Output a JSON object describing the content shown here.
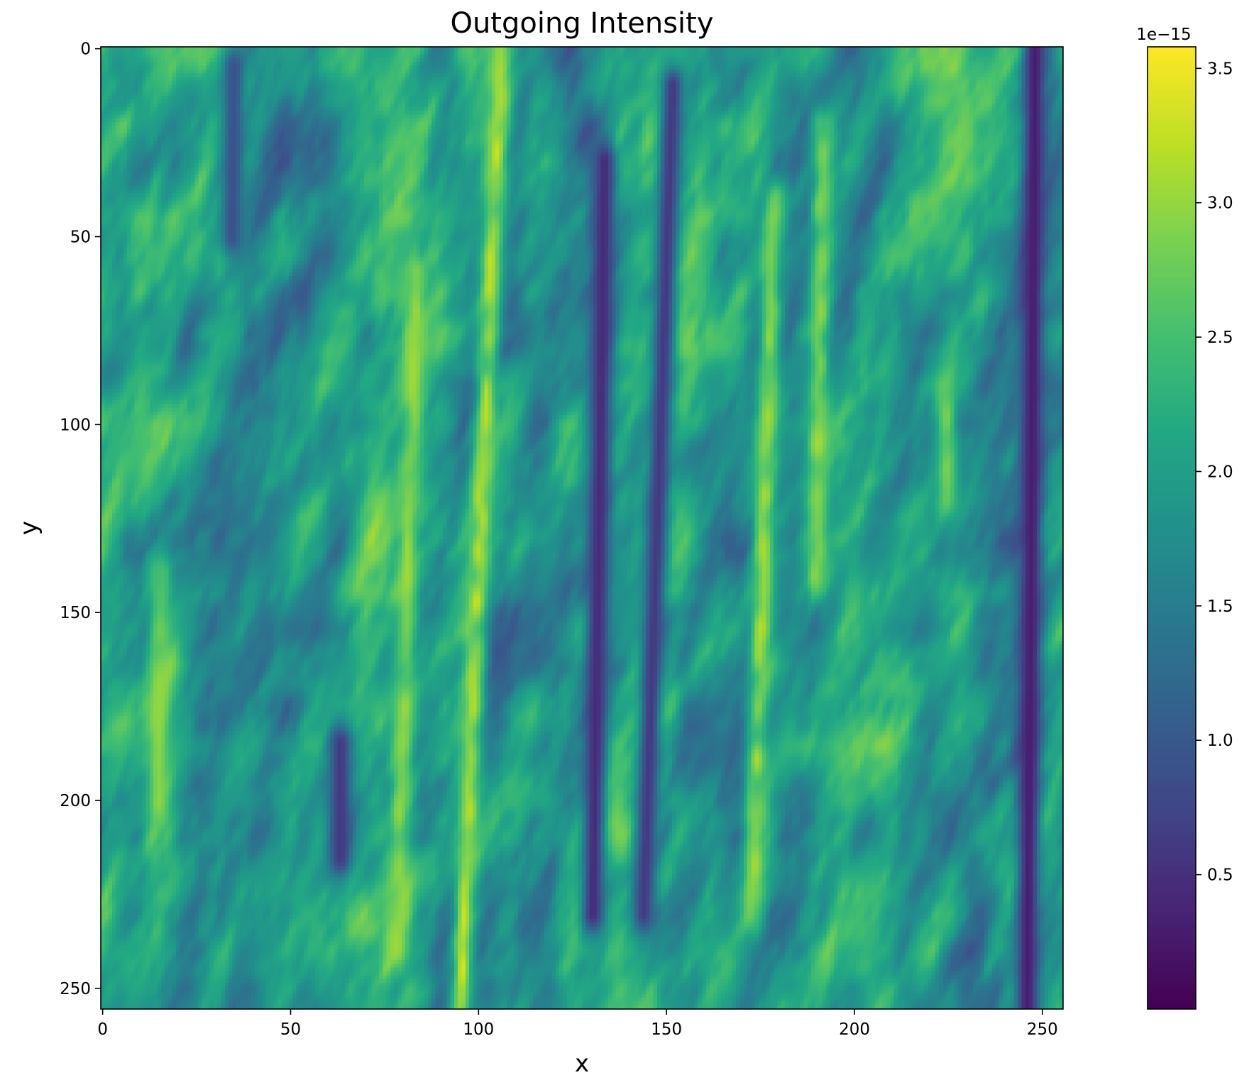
{
  "chart_data": {
    "type": "heatmap",
    "title": "Outgoing Intensity",
    "xlabel": "x",
    "ylabel": "y",
    "xlim": [
      0,
      255
    ],
    "ylim": [
      255,
      0
    ],
    "grid_size": [
      256,
      256
    ],
    "x_ticks": [
      0,
      50,
      100,
      150,
      200,
      250
    ],
    "y_ticks": [
      0,
      50,
      100,
      150,
      200,
      250
    ],
    "colormap": "viridis",
    "colorbar": {
      "range": [
        0.0,
        3.58
      ],
      "ticks": [
        0.5,
        1.0,
        1.5,
        2.0,
        2.5,
        3.0,
        3.5
      ],
      "tick_labels": [
        "0.5",
        "1.0",
        "1.5",
        "2.0",
        "2.5",
        "3.0",
        "3.5"
      ],
      "offset_label": "1e−15"
    },
    "grid": false,
    "dark_streaks": [
      {
        "x_top": 35,
        "x_bottom": 32,
        "value": 0.9,
        "rows": [
          5,
          50
        ]
      },
      {
        "x_top": 134,
        "x_bottom": 130,
        "value": 0.45,
        "rows": [
          30,
          230
        ]
      },
      {
        "x_top": 152,
        "x_bottom": 143,
        "value": 0.6,
        "rows": [
          10,
          230
        ]
      },
      {
        "x_top": 248,
        "x_bottom": 246,
        "value": 0.3,
        "rows": [
          0,
          255
        ]
      },
      {
        "x_top": 64,
        "x_bottom": 63,
        "value": 0.6,
        "rows": [
          185,
          215
        ]
      }
    ],
    "bright_streaks": [
      {
        "x_top": 106,
        "x_bottom": 95,
        "value": 3.4,
        "rows": [
          0,
          255
        ]
      },
      {
        "x_top": 85,
        "x_bottom": 78,
        "value": 3.1,
        "rows": [
          60,
          240
        ]
      },
      {
        "x_top": 180,
        "x_bottom": 172,
        "value": 3.2,
        "rows": [
          40,
          230
        ]
      },
      {
        "x_top": 192,
        "x_bottom": 188,
        "value": 3.1,
        "rows": [
          20,
          140
        ]
      },
      {
        "x_top": 17,
        "x_bottom": 14,
        "value": 3.0,
        "rows": [
          140,
          200
        ]
      },
      {
        "x_top": 226,
        "x_bottom": 222,
        "value": 2.9,
        "rows": [
          90,
          120
        ]
      }
    ]
  }
}
